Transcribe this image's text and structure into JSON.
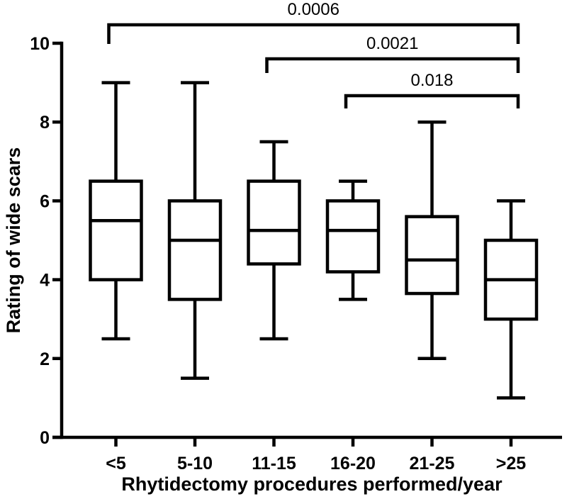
{
  "chart_data": {
    "type": "boxplot",
    "xlabel": "Rhytidectomy procedures performed/year",
    "ylabel": "Rating of wide scars",
    "ylim": [
      0,
      10
    ],
    "yticks": [
      0,
      2,
      4,
      6,
      8,
      10
    ],
    "grid": false,
    "categories": [
      "<5",
      "5-10",
      "11-15",
      "16-20",
      "21-25",
      ">25"
    ],
    "boxes": [
      {
        "category": "<5",
        "min": 2.5,
        "q1": 4.0,
        "median": 5.5,
        "q3": 6.5,
        "max": 9.0
      },
      {
        "category": "5-10",
        "min": 1.5,
        "q1": 3.5,
        "median": 5.0,
        "q3": 6.0,
        "max": 9.0
      },
      {
        "category": "11-15",
        "min": 2.5,
        "q1": 4.4,
        "median": 5.25,
        "q3": 6.5,
        "max": 7.5
      },
      {
        "category": "16-20",
        "min": 3.5,
        "q1": 4.2,
        "median": 5.25,
        "q3": 6.0,
        "max": 6.5
      },
      {
        "category": "21-25",
        "min": 2.0,
        "q1": 3.65,
        "median": 4.5,
        "q3": 5.6,
        "max": 8.0
      },
      {
        "category": ">25",
        "min": 1.0,
        "q1": 3.0,
        "median": 4.0,
        "q3": 5.0,
        "max": 6.0
      }
    ],
    "significance_brackets": [
      {
        "label": "0.0006",
        "from": "<5",
        "to": ">25"
      },
      {
        "label": "0.0021",
        "from": "11-15",
        "to": ">25"
      },
      {
        "label": "0.018",
        "from": "16-20",
        "to": ">25"
      }
    ],
    "colors": {
      "line": "#000000",
      "background": "#ffffff"
    }
  }
}
